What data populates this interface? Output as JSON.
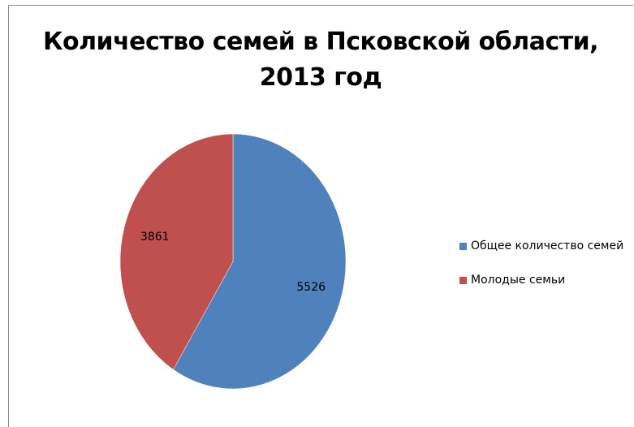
{
  "chart_data": {
    "type": "pie",
    "title_lines": [
      "Количество семей в Псковской области,",
      "2013 год"
    ],
    "categories": [
      "Общее количество семей",
      "Молодые семьи"
    ],
    "values": [
      5526,
      3861
    ],
    "data_labels": [
      "5526",
      "3861"
    ],
    "colors": [
      "#4F81BD",
      "#C0504D"
    ],
    "legend_position": "right"
  }
}
